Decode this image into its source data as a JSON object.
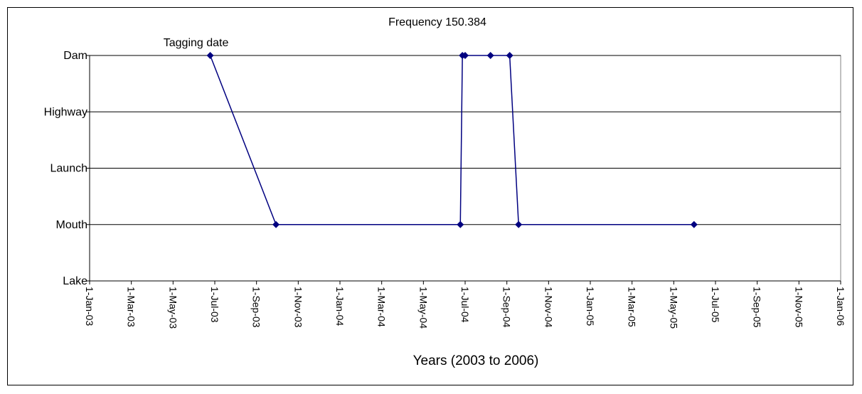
{
  "chart_data": {
    "type": "line",
    "title": "Frequency 150.384",
    "xlabel": "Years (2003 to 2006)",
    "ylabel": "",
    "annotation": "Tagging date",
    "y_categories": [
      "Lake",
      "Mouth",
      "Launch",
      "Highway",
      "Dam"
    ],
    "x_ticks": [
      "1-Jan-03",
      "1-Mar-03",
      "1-May-03",
      "1-Jul-03",
      "1-Sep-03",
      "1-Nov-03",
      "1-Jan-04",
      "1-Mar-04",
      "1-May-04",
      "1-Jul-04",
      "1-Sep-04",
      "1-Nov-04",
      "1-Jan-05",
      "1-Mar-05",
      "1-May-05",
      "1-Jul-05",
      "1-Sep-05",
      "1-Nov-05",
      "1-Jan-06"
    ],
    "xlim": [
      "2003-01-01",
      "2006-01-01"
    ],
    "gridlines": "horizontal",
    "legend": "none",
    "series": [
      {
        "color": "#000080",
        "points": [
          {
            "x": "2003-06-26",
            "y": "Dam"
          },
          {
            "x": "2003-09-30",
            "y": "Mouth"
          },
          {
            "x": "2004-06-25",
            "y": "Mouth"
          },
          {
            "x": "2004-06-28",
            "y": "Dam"
          },
          {
            "x": "2004-07-02",
            "y": "Dam"
          },
          {
            "x": "2004-08-08",
            "y": "Dam"
          },
          {
            "x": "2004-09-05",
            "y": "Dam"
          },
          {
            "x": "2004-09-18",
            "y": "Mouth"
          },
          {
            "x": "2005-06-01",
            "y": "Mouth"
          }
        ]
      }
    ]
  }
}
